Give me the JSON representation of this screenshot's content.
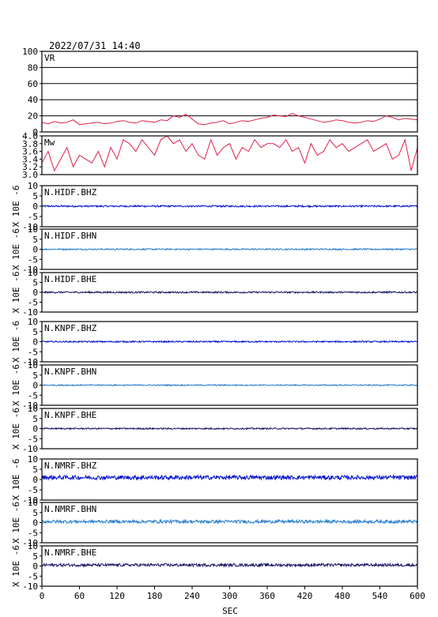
{
  "header": {
    "timestamp": "2022/07/31  14:40"
  },
  "x_axis": {
    "label": "SEC",
    "range": [
      0,
      600
    ],
    "ticks": [
      0,
      60,
      120,
      180,
      240,
      300,
      360,
      420,
      480,
      540,
      600
    ]
  },
  "colors": {
    "frame": "#000000",
    "vr_line": "#e0204a",
    "mw_line": "#e0204a",
    "bhz": "#0010cc",
    "bhn": "#2a7fd0",
    "bhe": "#101060",
    "grid": "#000000"
  },
  "chart_data": [
    {
      "type": "line",
      "panel_label": "VR",
      "ylim": [
        0,
        100
      ],
      "yticks": [
        0,
        20,
        40,
        60,
        80,
        100
      ],
      "grid": true,
      "x": [
        0,
        10,
        20,
        30,
        40,
        50,
        60,
        70,
        80,
        90,
        100,
        110,
        120,
        130,
        140,
        150,
        160,
        170,
        180,
        190,
        200,
        210,
        220,
        230,
        240,
        250,
        260,
        270,
        280,
        290,
        300,
        310,
        320,
        330,
        340,
        350,
        360,
        370,
        380,
        390,
        400,
        410,
        420,
        430,
        440,
        450,
        460,
        470,
        480,
        490,
        500,
        510,
        520,
        530,
        540,
        550,
        560,
        570,
        580,
        590,
        600
      ],
      "values": [
        12,
        10,
        13,
        11,
        12,
        15,
        9,
        10,
        11,
        12,
        10,
        11,
        13,
        14,
        12,
        11,
        14,
        13,
        12,
        15,
        14,
        20,
        18,
        22,
        16,
        10,
        9,
        11,
        12,
        14,
        10,
        12,
        14,
        13,
        15,
        17,
        18,
        21,
        20,
        19,
        23,
        20,
        18,
        16,
        14,
        12,
        13,
        15,
        14,
        12,
        11,
        12,
        14,
        13,
        16,
        20,
        18,
        15,
        17,
        16,
        15
      ]
    },
    {
      "type": "line",
      "panel_label": "Mw",
      "ylim": [
        3.0,
        4.0
      ],
      "yticks": [
        3.0,
        3.2,
        3.4,
        3.6,
        3.8,
        4.0
      ],
      "grid": false,
      "x": [
        0,
        10,
        20,
        30,
        40,
        50,
        60,
        70,
        80,
        90,
        100,
        110,
        120,
        130,
        140,
        150,
        160,
        170,
        180,
        190,
        200,
        210,
        220,
        230,
        240,
        250,
        260,
        270,
        280,
        290,
        300,
        310,
        320,
        330,
        340,
        350,
        360,
        370,
        380,
        390,
        400,
        410,
        420,
        430,
        440,
        450,
        460,
        470,
        480,
        490,
        500,
        510,
        520,
        530,
        540,
        550,
        560,
        570,
        580,
        590,
        600
      ],
      "values": [
        3.3,
        3.6,
        3.1,
        3.4,
        3.7,
        3.2,
        3.5,
        3.4,
        3.3,
        3.6,
        3.2,
        3.7,
        3.4,
        3.9,
        3.8,
        3.6,
        3.9,
        3.7,
        3.5,
        3.9,
        4.0,
        3.8,
        3.9,
        3.6,
        3.8,
        3.5,
        3.4,
        3.9,
        3.5,
        3.7,
        3.8,
        3.4,
        3.7,
        3.6,
        3.9,
        3.7,
        3.8,
        3.8,
        3.7,
        3.9,
        3.6,
        3.7,
        3.3,
        3.8,
        3.5,
        3.6,
        3.9,
        3.7,
        3.8,
        3.6,
        3.7,
        3.8,
        3.9,
        3.6,
        3.7,
        3.8,
        3.4,
        3.5,
        3.9,
        3.1,
        3.7
      ]
    },
    {
      "type": "line",
      "panel_label": "N.HIDF.BHZ",
      "ylabel": "X 10E -6",
      "ylim": [
        -10,
        10
      ],
      "yticks": [
        -10,
        -5,
        0,
        5,
        10
      ],
      "baseline": 0,
      "noise_amplitude": 0.4,
      "color_key": "bhz"
    },
    {
      "type": "line",
      "panel_label": "N.HIDF.BHN",
      "ylabel": "X 10E -6",
      "ylim": [
        -10,
        10
      ],
      "yticks": [
        -10,
        -5,
        0,
        5,
        10
      ],
      "baseline": 0,
      "noise_amplitude": 0.35,
      "color_key": "bhn"
    },
    {
      "type": "line",
      "panel_label": "N.HIDF.BHE",
      "ylabel": "X 10E -6",
      "ylim": [
        -10,
        10
      ],
      "yticks": [
        -10,
        -5,
        0,
        5,
        10
      ],
      "baseline": 0,
      "noise_amplitude": 0.4,
      "color_key": "bhe"
    },
    {
      "type": "line",
      "panel_label": "N.KNPF.BHZ",
      "ylabel": "X 10E -6",
      "ylim": [
        -10,
        10
      ],
      "yticks": [
        -10,
        -5,
        0,
        5,
        10
      ],
      "baseline": 0,
      "noise_amplitude": 0.35,
      "color_key": "bhz"
    },
    {
      "type": "line",
      "panel_label": "N.KNPF.BHN",
      "ylabel": "X 10E -6",
      "ylim": [
        -10,
        10
      ],
      "yticks": [
        -10,
        -5,
        0,
        5,
        10
      ],
      "baseline": 0,
      "noise_amplitude": 0.3,
      "color_key": "bhn"
    },
    {
      "type": "line",
      "panel_label": "N.KNPF.BHE",
      "ylabel": "X 10E -6",
      "ylim": [
        -10,
        10
      ],
      "yticks": [
        -10,
        -5,
        0,
        5,
        10
      ],
      "baseline": 0,
      "noise_amplitude": 0.35,
      "color_key": "bhe"
    },
    {
      "type": "line",
      "panel_label": "N.NMRF.BHZ",
      "ylabel": "X 10E -6",
      "ylim": [
        -10,
        10
      ],
      "yticks": [
        -10,
        -5,
        0,
        5,
        10
      ],
      "baseline": 1,
      "noise_amplitude": 1.0,
      "color_key": "bhz"
    },
    {
      "type": "line",
      "panel_label": "N.NMRF.BHN",
      "ylabel": "X 10E -6",
      "ylim": [
        -10,
        10
      ],
      "yticks": [
        -10,
        -5,
        0,
        5,
        10
      ],
      "baseline": 0.5,
      "noise_amplitude": 0.8,
      "color_key": "bhn"
    },
    {
      "type": "line",
      "panel_label": "N.NMRF.BHE",
      "ylabel": "X 10E -6",
      "ylim": [
        -10,
        10
      ],
      "yticks": [
        -10,
        -5,
        0,
        5,
        10
      ],
      "baseline": 0.5,
      "noise_amplitude": 0.7,
      "color_key": "bhe"
    }
  ]
}
